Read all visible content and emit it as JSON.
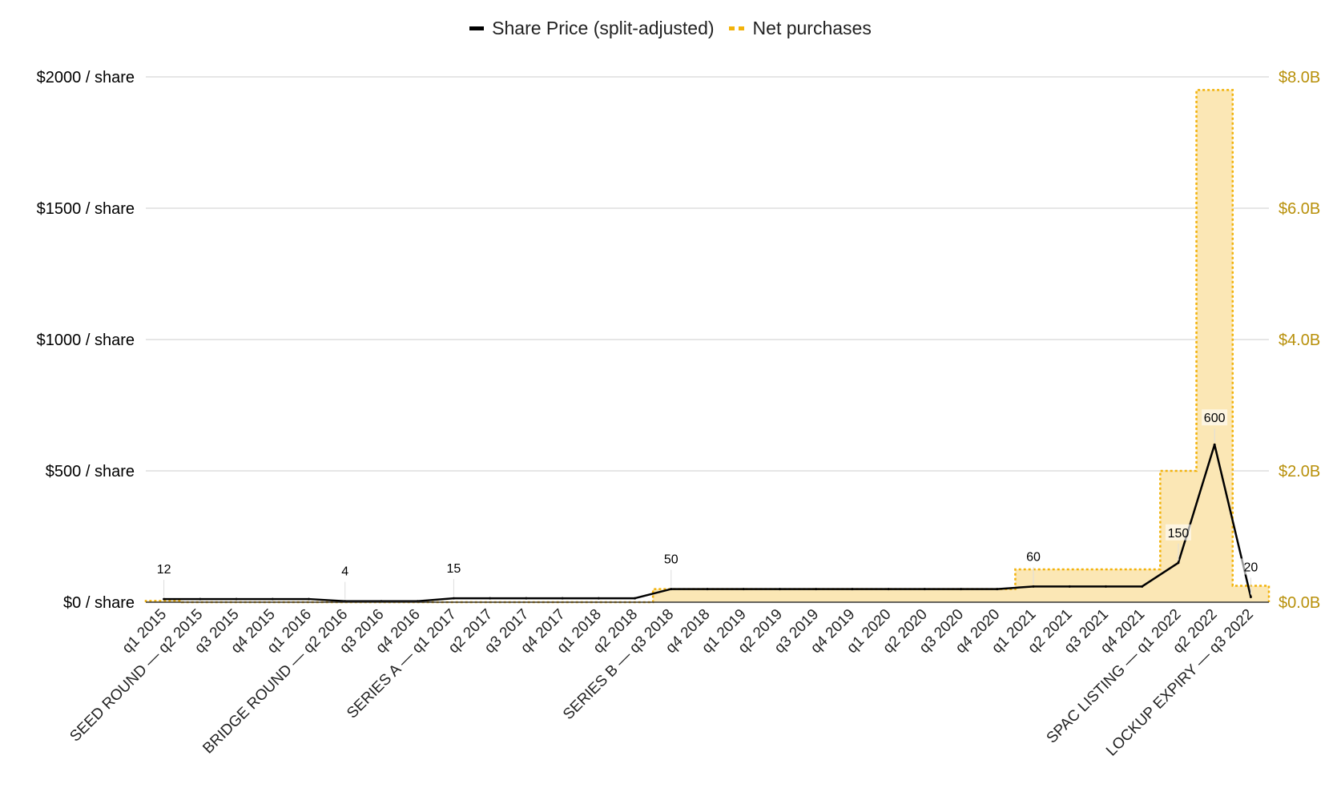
{
  "chart_data": {
    "type": "line+area",
    "legend": {
      "placement": "top-center",
      "items": [
        {
          "name": "Share Price (split-adjusted)",
          "style": "solid-line",
          "color": "#000000"
        },
        {
          "name": "Net purchases",
          "style": "dotted-area",
          "color": "#f2b20a"
        }
      ]
    },
    "categories": [
      "q1 2015",
      "SEED ROUND — q2 2015",
      "q3 2015",
      "q4 2015",
      "q1 2016",
      "BRIDGE ROUND — q2 2016",
      "q3 2016",
      "q4 2016",
      "SERIES A — q1 2017",
      "q2 2017",
      "q3 2017",
      "q4 2017",
      "q1 2018",
      "q2 2018",
      "SERIES B — q3 2018",
      "q4 2018",
      "q1 2019",
      "q2 2019",
      "q3 2019",
      "q4 2019",
      "q1 2020",
      "q2 2020",
      "q3 2020",
      "q4 2020",
      "q1 2021",
      "q2 2021",
      "q3 2021",
      "q4 2021",
      "SPAC LISTING — q1 2022",
      "q2 2022",
      "LOCKUP EXPIRY — q3 2022"
    ],
    "series": [
      {
        "name": "Share Price (split-adjusted)",
        "axis": "left",
        "type": "line",
        "values": [
          12,
          12,
          12,
          12,
          12,
          4,
          4,
          4,
          15,
          15,
          15,
          15,
          15,
          15,
          50,
          50,
          50,
          50,
          50,
          50,
          50,
          50,
          50,
          50,
          60,
          60,
          60,
          60,
          150,
          600,
          20
        ]
      },
      {
        "name": "Net purchases",
        "axis": "right",
        "type": "step-area",
        "unit": "$B",
        "values": [
          0.02,
          0.0,
          0.0,
          0.0,
          0.0,
          0.0,
          0.0,
          0.0,
          0.0,
          0.0,
          0.0,
          0.0,
          0.0,
          0.0,
          0.2,
          0.2,
          0.2,
          0.2,
          0.2,
          0.2,
          0.2,
          0.2,
          0.2,
          0.2,
          0.5,
          0.5,
          0.5,
          0.5,
          2.0,
          7.8,
          0.25
        ]
      }
    ],
    "point_labels": [
      {
        "index": 0,
        "text": "12"
      },
      {
        "index": 5,
        "text": "4"
      },
      {
        "index": 8,
        "text": "15"
      },
      {
        "index": 14,
        "text": "50"
      },
      {
        "index": 24,
        "text": "60"
      },
      {
        "index": 28,
        "text": "150"
      },
      {
        "index": 29,
        "text": "600"
      },
      {
        "index": 30,
        "text": "20"
      }
    ],
    "y_left": {
      "range": [
        0,
        2000
      ],
      "ticks": [
        0,
        500,
        1000,
        1500,
        2000
      ],
      "tick_labels": [
        "$0 / share",
        "$500 / share",
        "$1000 / share",
        "$1500 / share",
        "$2000 / share"
      ],
      "color": "#000000"
    },
    "y_right": {
      "range": [
        0,
        8
      ],
      "ticks": [
        0,
        2,
        4,
        6,
        8
      ],
      "tick_labels": [
        "$0.0B",
        "$2.0B",
        "$4.0B",
        "$6.0B",
        "$8.0B"
      ],
      "color": "#b8900a"
    },
    "grid": true,
    "colors": {
      "line": "#000000",
      "area_fill": "#fbe7b5",
      "area_stroke": "#f2b20a",
      "grid": "#cccccc"
    }
  }
}
